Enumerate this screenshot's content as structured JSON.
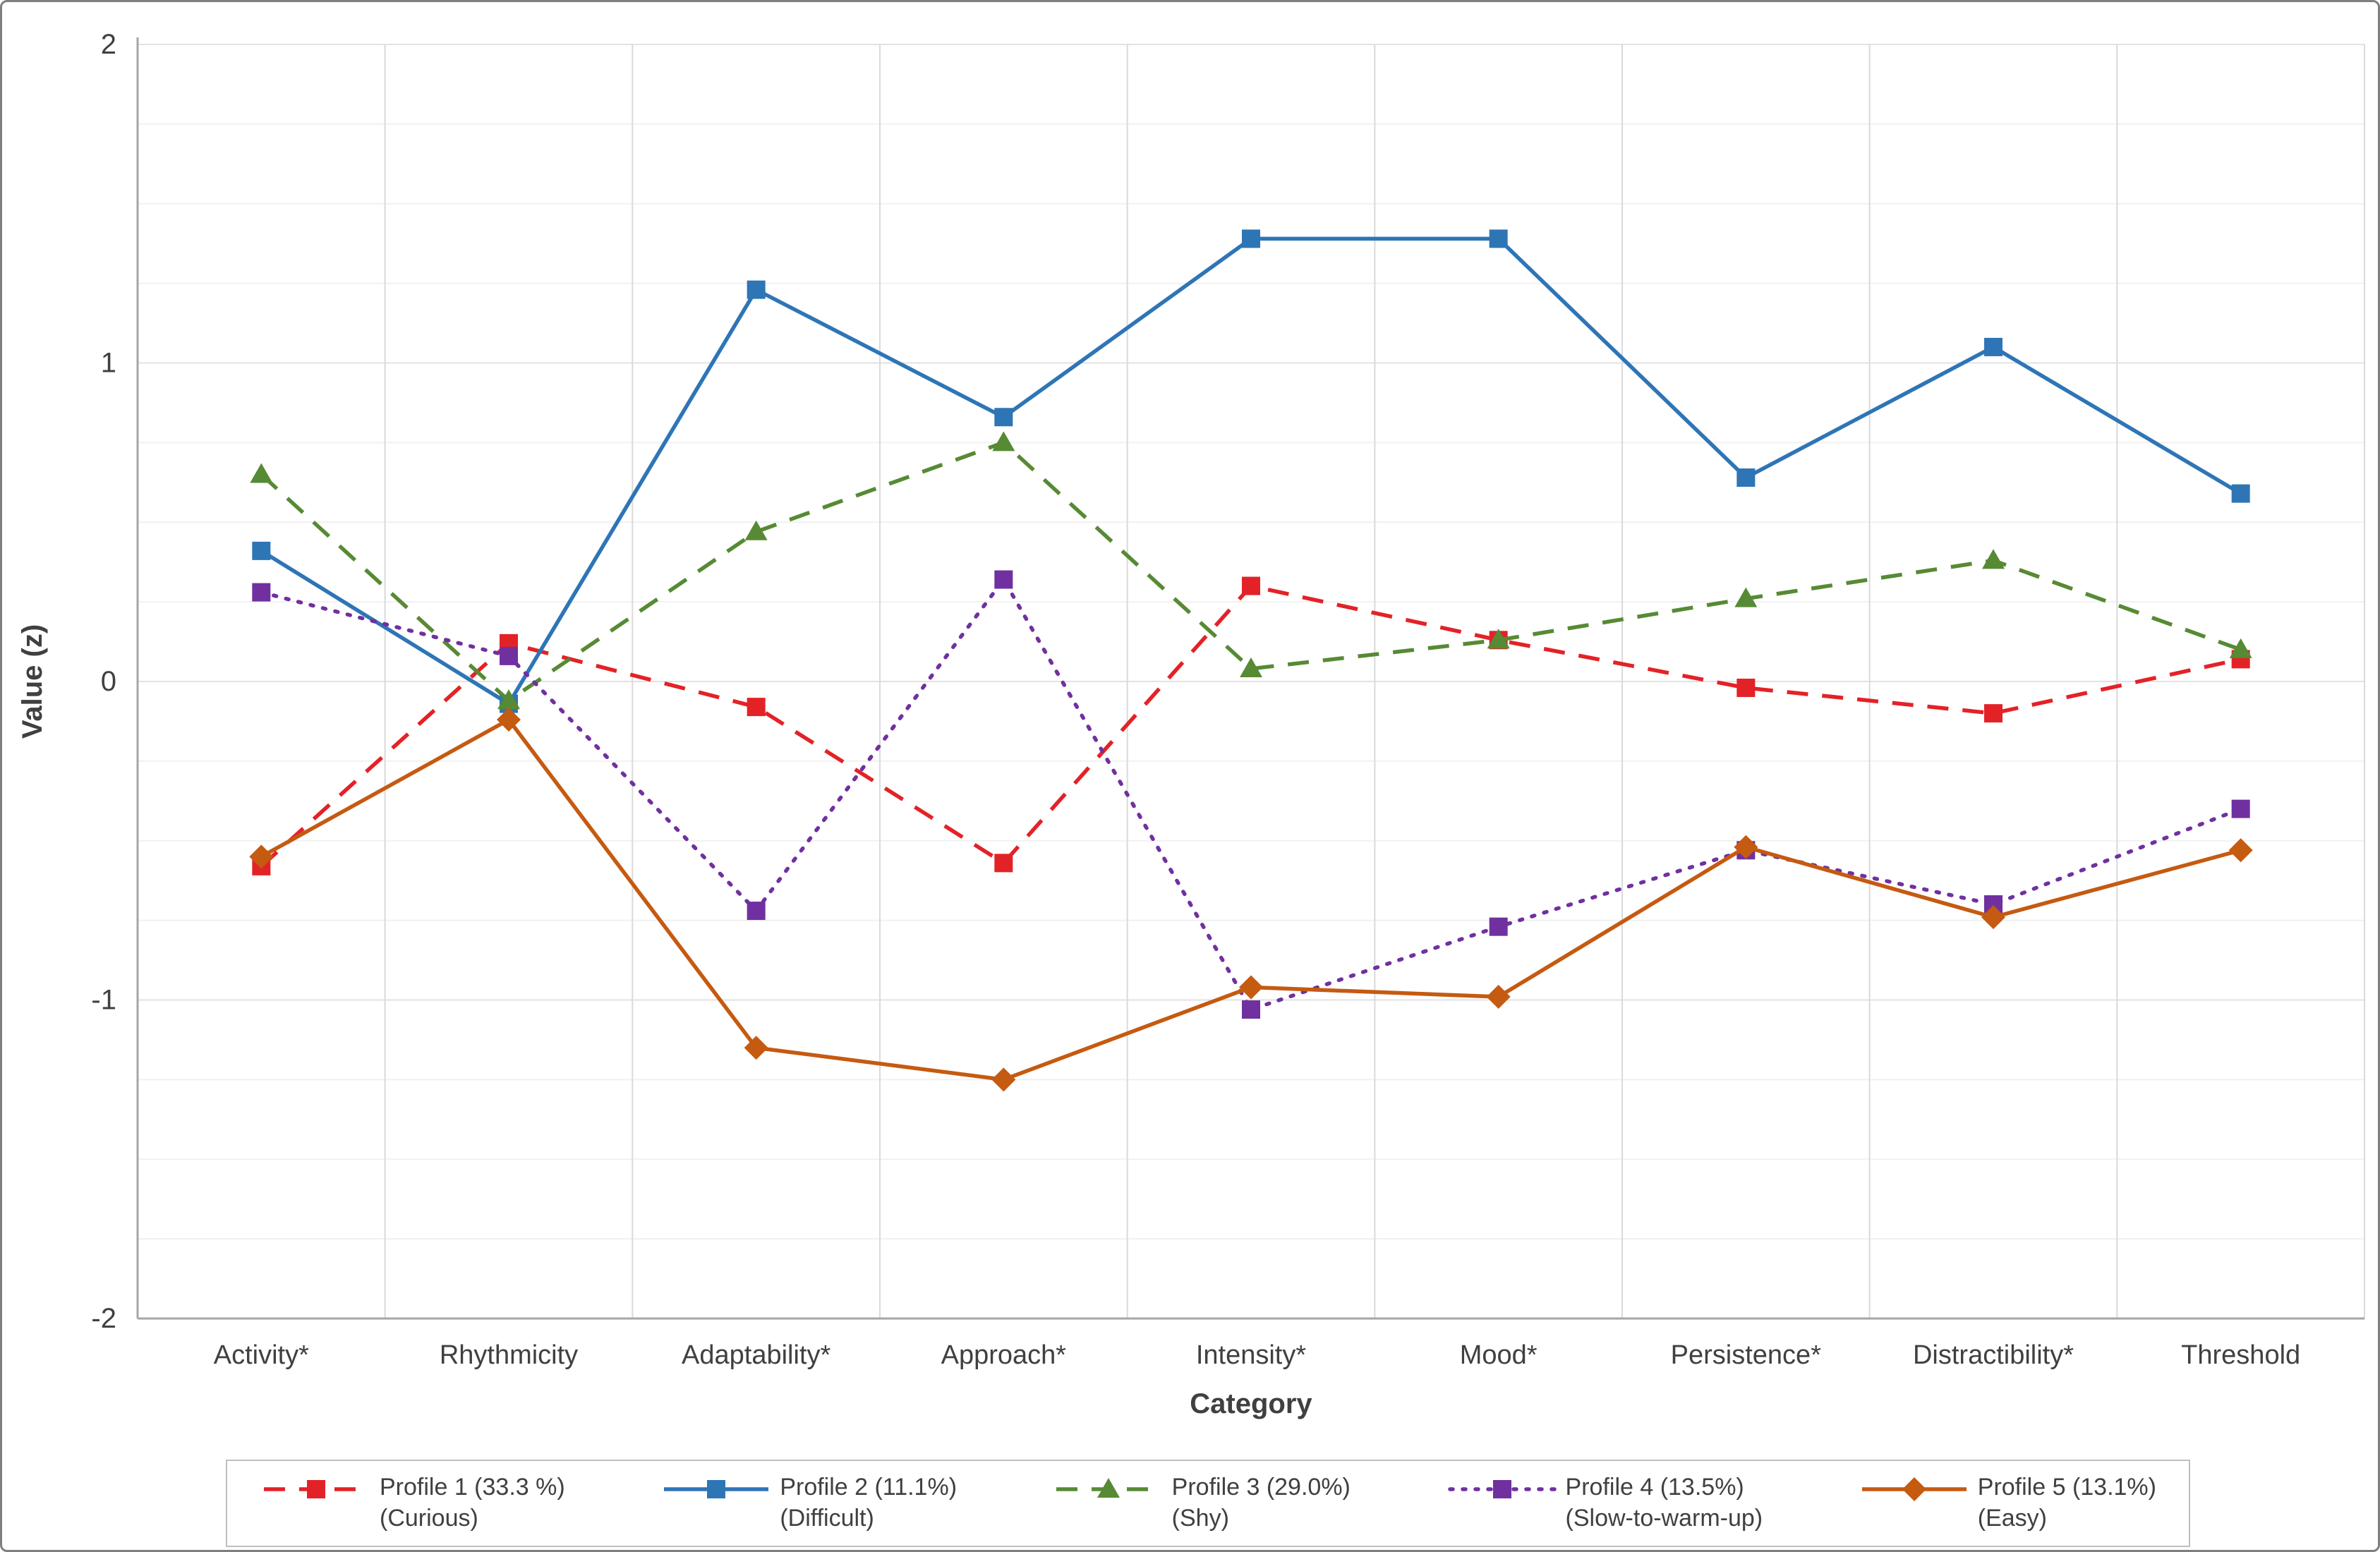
{
  "figure": {
    "ylabel": "Value (z)",
    "xlabel": "Category"
  },
  "colors": {
    "grid_minor": "#f1f1f1",
    "grid_major": "#e2e2e2",
    "grid_vertical": "#dadada",
    "axis": "#a6a6a6",
    "text": "#404040"
  },
  "chart_data": {
    "type": "line",
    "categories": [
      "Activity*",
      "Rhythmicity",
      "Adaptability*",
      "Approach*",
      "Intensity*",
      "Mood*",
      "Persistence*",
      "Distractibility*",
      "Threshold"
    ],
    "ylim": [
      -2,
      2
    ],
    "yticks": [
      -2,
      -1,
      0,
      1,
      2
    ],
    "grid": true,
    "legend_position": "bottom",
    "xlabel": "Category",
    "ylabel": "Value (z)",
    "series": [
      {
        "name": "Profile 1 (33.3 %) (Curious)",
        "label_line1": "Profile 1 (33.3 %)",
        "label_line2": "(Curious)",
        "color": "#e32227",
        "line_style": "dashed",
        "marker": "square",
        "values": [
          -0.58,
          0.12,
          -0.08,
          -0.57,
          0.3,
          0.13,
          -0.02,
          -0.1,
          0.07
        ]
      },
      {
        "name": "Profile 2 (11.1%) (Difficult)",
        "label_line1": "Profile 2 (11.1%)",
        "label_line2": "(Difficult)",
        "color": "#2e75b6",
        "line_style": "solid",
        "marker": "square",
        "values": [
          0.41,
          -0.07,
          1.23,
          0.83,
          1.39,
          1.39,
          0.64,
          1.05,
          0.59
        ]
      },
      {
        "name": "Profile 3 (29.0%) (Shy)",
        "label_line1": "Profile 3 (29.0%)",
        "label_line2": "(Shy)",
        "color": "#578a34",
        "line_style": "dashed",
        "marker": "triangle",
        "values": [
          0.65,
          -0.06,
          0.47,
          0.75,
          0.04,
          0.13,
          0.26,
          0.38,
          0.1
        ]
      },
      {
        "name": "Profile 4 (13.5%) (Slow-to-warm-up)",
        "label_line1": "Profile 4 (13.5%)",
        "label_line2": "(Slow-to-warm-up)",
        "color": "#7030a0",
        "line_style": "dotted",
        "marker": "square",
        "values": [
          0.28,
          0.08,
          -0.72,
          0.32,
          -1.03,
          -0.77,
          -0.53,
          -0.7,
          -0.4
        ]
      },
      {
        "name": "Profile 5 (13.1%) (Easy)",
        "label_line1": "Profile 5 (13.1%)",
        "label_line2": "(Easy)",
        "color": "#c55a11",
        "line_style": "solid",
        "marker": "diamond",
        "values": [
          -0.55,
          -0.12,
          -1.15,
          -1.25,
          -0.96,
          -0.99,
          -0.52,
          -0.74,
          -0.53
        ]
      }
    ]
  }
}
